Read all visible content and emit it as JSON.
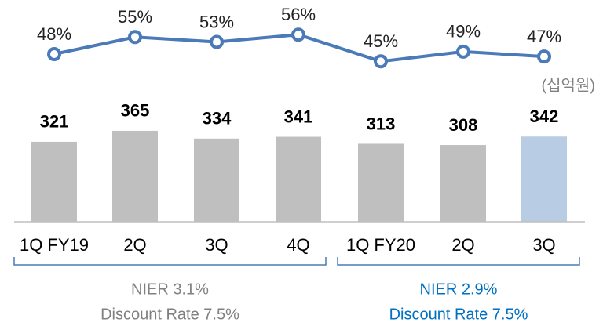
{
  "chart_data": {
    "type": "bar_line",
    "categories": [
      "1Q FY19",
      "2Q",
      "3Q",
      "4Q",
      "1Q FY20",
      "2Q",
      "3Q"
    ],
    "values": [
      321,
      365,
      334,
      341,
      313,
      308,
      342
    ],
    "colors": [
      "#bfbfbf",
      "#bfbfbf",
      "#bfbfbf",
      "#bfbfbf",
      "#bfbfbf",
      "#bfbfbf",
      "#b8cce4"
    ],
    "unit_label": "(십억원)",
    "line": {
      "values": [
        48,
        55,
        53,
        56,
        45,
        49,
        47
      ],
      "value_labels": [
        "48%",
        "55%",
        "53%",
        "56%",
        "45%",
        "49%",
        "47%"
      ],
      "color": "#4a7ab8"
    },
    "groups": [
      {
        "lines": [
          "NIER 3.1%",
          "Discount Rate 7.5%"
        ],
        "color": "#808080"
      },
      {
        "lines": [
          "NIER 2.9%",
          "Discount Rate 7.5%"
        ],
        "color": "#0070c0"
      }
    ]
  }
}
